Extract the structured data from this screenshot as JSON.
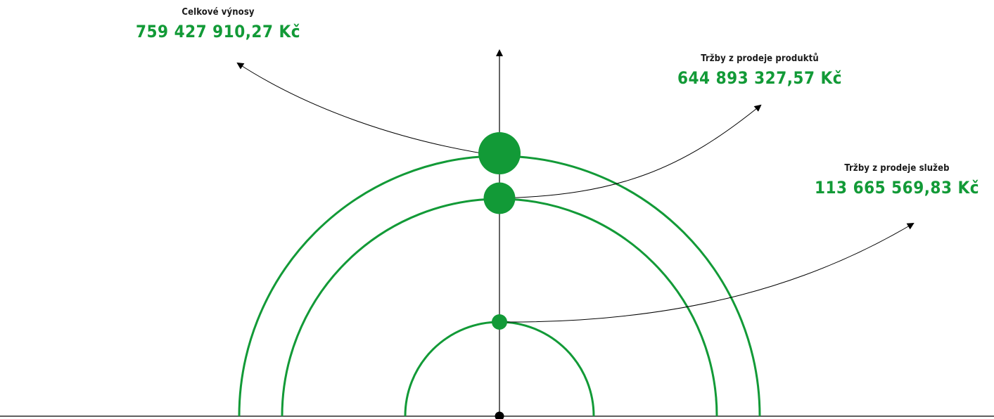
{
  "colors": {
    "accent_green": "#129a37",
    "line_black": "#000000",
    "label_dark": "#1a1a1a"
  },
  "items": [
    {
      "label": "Celkové výnosy",
      "value": "759 427 910,27 Kč"
    },
    {
      "label": "Tržby z prodeje produktů",
      "value": "644 893 327,57 Kč"
    },
    {
      "label": "Tržby z prodeje služeb",
      "value": "113 665 569,83 Kč"
    }
  ]
}
